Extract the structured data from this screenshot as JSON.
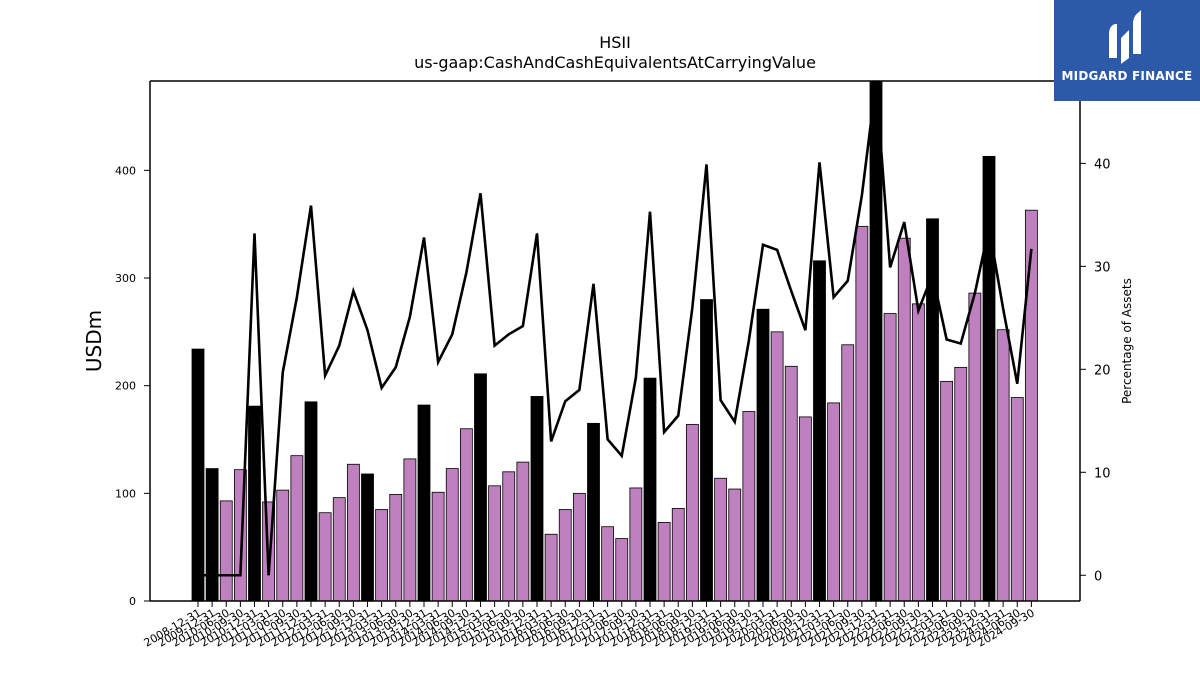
{
  "chart_data": {
    "type": "bar",
    "title": "HSII",
    "subtitle": "us-gaap:CashAndCashEquivalentsAtCarryingValue",
    "ylabel": "USDm",
    "y2label": "Percentage of Assets",
    "ylim": [
      0,
      483
    ],
    "y2lim": [
      -2.5,
      48
    ],
    "yticks": [
      0,
      100,
      200,
      300,
      400
    ],
    "y2ticks": [
      0,
      10,
      20,
      30,
      40
    ],
    "categories": [
      "2008-12-31",
      "2009-12-31",
      "2010-06-30",
      "2010-09-30",
      "2010-12-31",
      "2011-03-31",
      "2011-06-30",
      "2011-09-30",
      "2011-12-31",
      "2012-03-31",
      "2012-06-30",
      "2012-09-30",
      "2012-12-31",
      "2013-03-31",
      "2013-06-30",
      "2013-09-30",
      "2013-12-31",
      "2014-03-31",
      "2014-06-30",
      "2014-09-30",
      "2014-12-31",
      "2015-03-31",
      "2015-06-30",
      "2015-09-30",
      "2015-12-31",
      "2016-03-31",
      "2016-06-30",
      "2016-09-30",
      "2016-12-31",
      "2017-03-31",
      "2017-06-30",
      "2017-09-30",
      "2017-12-31",
      "2018-03-31",
      "2018-06-30",
      "2018-09-30",
      "2018-12-31",
      "2019-03-31",
      "2019-06-30",
      "2019-09-30",
      "2019-12-31",
      "2020-03-31",
      "2020-06-30",
      "2020-09-30",
      "2020-12-31",
      "2021-03-31",
      "2021-06-30",
      "2021-09-30",
      "2021-12-31",
      "2022-03-31",
      "2022-06-30",
      "2022-09-30",
      "2022-12-31",
      "2023-03-31",
      "2023-06-30",
      "2023-09-30",
      "2023-12-31",
      "2024-03-31",
      "2024-06-30",
      "2024-09-30"
    ],
    "series": [
      {
        "name": "USDm",
        "values": [
          234,
          123,
          93,
          122,
          181,
          92,
          103,
          135,
          185,
          82,
          96,
          127,
          118,
          85,
          99,
          132,
          182,
          101,
          123,
          160,
          211,
          107,
          120,
          129,
          190,
          62,
          85,
          100,
          165,
          69,
          58,
          105,
          207,
          73,
          86,
          164,
          280,
          114,
          104,
          176,
          271,
          250,
          218,
          171,
          316,
          184,
          238,
          348,
          483,
          267,
          337,
          276,
          355,
          204,
          217,
          286,
          413,
          252,
          189,
          363
        ],
        "year_end": [
          true,
          true,
          false,
          false,
          true,
          false,
          false,
          false,
          true,
          false,
          false,
          false,
          true,
          false,
          false,
          false,
          true,
          false,
          false,
          false,
          true,
          false,
          false,
          false,
          true,
          false,
          false,
          false,
          true,
          false,
          false,
          false,
          true,
          false,
          false,
          false,
          true,
          false,
          false,
          false,
          true,
          false,
          false,
          false,
          true,
          false,
          false,
          false,
          true,
          false,
          false,
          false,
          true,
          false,
          false,
          false,
          true,
          false,
          false,
          false
        ]
      },
      {
        "name": "Percentage of Assets",
        "values": [
          0,
          0,
          0,
          0,
          33.2,
          0,
          19.7,
          27.0,
          35.9,
          19.4,
          22.3,
          27.6,
          23.8,
          18.2,
          20.2,
          25.1,
          32.8,
          20.7,
          23.4,
          29.4,
          37.1,
          22.3,
          23.4,
          24.2,
          33.2,
          13.0,
          16.9,
          18.0,
          28.3,
          13.2,
          11.6,
          19.2,
          35.3,
          13.9,
          15.5,
          26.0,
          39.9,
          17.0,
          14.9,
          22.8,
          32.1,
          31.6,
          27.6,
          23.8,
          40.1,
          27.0,
          28.6,
          36.9,
          47.9,
          29.9,
          34.3,
          25.7,
          29.2,
          22.9,
          22.5,
          27.4,
          33.8,
          25.9,
          18.6,
          31.7
        ]
      }
    ],
    "colors": {
      "year_end_bar": "#000000",
      "quarter_bar": "#bf80bf",
      "bar_edge": "#000000",
      "line": "#000000"
    }
  },
  "logo": {
    "text": "MIDGARD FINANCE",
    "background": "#2c5aa8"
  }
}
